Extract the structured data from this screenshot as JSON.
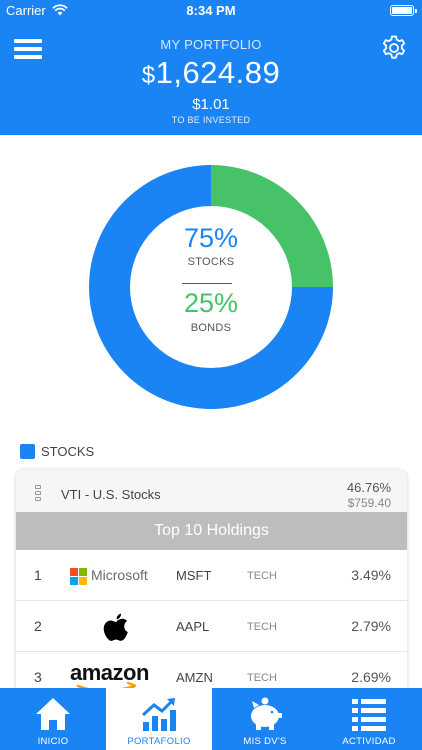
{
  "status_bar": {
    "carrier": "Carrier",
    "time": "8:34 PM"
  },
  "header": {
    "title": "MY PORTFOLIO",
    "currency_symbol": "$",
    "value": "1,624.89",
    "cash": "$1.01",
    "cash_label": "TO BE INVESTED"
  },
  "colors": {
    "primary": "#1a84f5",
    "stocks": "#1a84f5",
    "bonds": "#48c268",
    "holdings_bar": "#bdbdbd"
  },
  "allocation": {
    "stocks_pct": "75%",
    "stocks_label": "STOCKS",
    "bonds_pct": "25%",
    "bonds_label": "BONDS",
    "stocks_fraction": 0.75,
    "bonds_fraction": 0.25
  },
  "legend": {
    "label": "STOCKS"
  },
  "fund": {
    "name": "VTI - U.S. Stocks",
    "pct": "46.76%",
    "amount": "$759.40"
  },
  "holdings": {
    "title": "Top 10 Holdings",
    "rows": [
      {
        "rank": "1",
        "logo": "microsoft-logo",
        "logo_text": "Microsoft",
        "ticker": "MSFT",
        "sector": "TECH",
        "weight": "3.49%"
      },
      {
        "rank": "2",
        "logo": "apple-logo",
        "logo_text": "",
        "ticker": "AAPL",
        "sector": "TECH",
        "weight": "2.79%"
      },
      {
        "rank": "3",
        "logo": "amazon-logo",
        "logo_text": "amazon",
        "ticker": "AMZN",
        "sector": "TECH",
        "weight": "2.69%"
      }
    ]
  },
  "tabs": [
    {
      "label": "INICIO",
      "icon": "home-icon",
      "active": false
    },
    {
      "label": "PORTAFOLIO",
      "icon": "chart-icon",
      "active": true
    },
    {
      "label": "MIS DV'S",
      "icon": "piggy-bank-icon",
      "active": false
    },
    {
      "label": "ACTIVIDAD",
      "icon": "list-icon",
      "active": false
    }
  ]
}
